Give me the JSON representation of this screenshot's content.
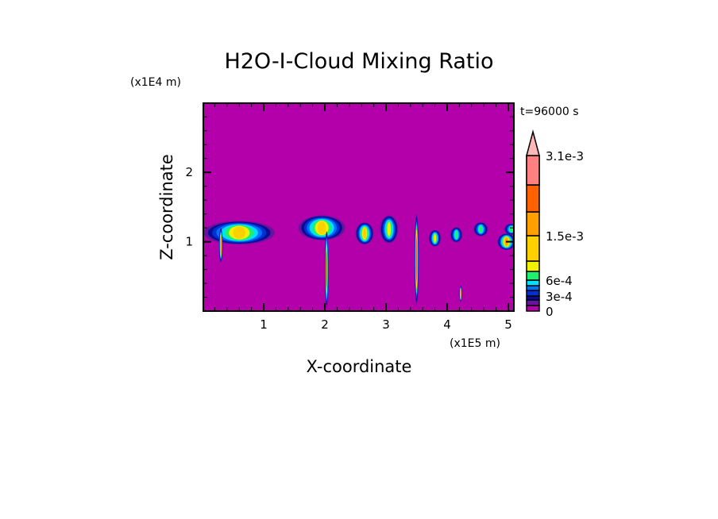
{
  "chart_data": {
    "type": "heatmap",
    "title": "H2O-I-Cloud Mixing Ratio",
    "xlabel": "X-coordinate",
    "ylabel": "Z-coordinate",
    "x_unit": "(x1E5 m)",
    "y_unit": "(x1E4 m)",
    "time_label": "t=96000 s",
    "xlim": [
      0,
      5.13
    ],
    "ylim": [
      0,
      3.0
    ],
    "x_ticks": [
      1,
      2,
      3,
      4,
      5
    ],
    "x_tick_labels": [
      "1",
      "2",
      "3",
      "4",
      "5"
    ],
    "y_ticks": [
      1,
      2
    ],
    "y_tick_labels": [
      "1",
      "2"
    ],
    "minor_step": 0.2,
    "background_color": "#b400aa",
    "colorbar": {
      "levels": [
        0,
        0.0001,
        0.0002,
        0.0003,
        0.0004,
        0.0005,
        0.0006,
        0.0007,
        0.001,
        0.0015,
        0.002,
        0.0025,
        0.0031
      ],
      "colors": [
        "#b400aa",
        "#6614a0",
        "#0a0a96",
        "#0030d0",
        "#0070ff",
        "#00e0ff",
        "#20f070",
        "#f0f000",
        "#ffd000",
        "#ffa000",
        "#ff6000",
        "#ff1414",
        "#ff8080"
      ],
      "extend_color": "#ffb8b8",
      "labels": [
        {
          "value": 0,
          "text": "0"
        },
        {
          "value": 0.0003,
          "text": "3e-4"
        },
        {
          "value": 0.0006,
          "text": "6e-4"
        },
        {
          "value": 0.0015,
          "text": "1.5e-3"
        },
        {
          "value": 0.0031,
          "text": "3.1e-3"
        }
      ]
    },
    "features": [
      {
        "name": "anvil-1",
        "x": 0.6,
        "z": 1.13,
        "rx": 0.58,
        "rz": 0.17,
        "max_level": 8
      },
      {
        "name": "column-1",
        "x": 0.3,
        "z": 0.95,
        "rx": 0.03,
        "rz": 0.25,
        "max_level": 9
      },
      {
        "name": "anvil-2",
        "x": 1.95,
        "z": 1.2,
        "rx": 0.38,
        "rz": 0.18,
        "max_level": 8
      },
      {
        "name": "column-2",
        "x": 2.03,
        "z": 0.6,
        "rx": 0.03,
        "rz": 0.55,
        "max_level": 10
      },
      {
        "name": "cloud-3",
        "x": 2.65,
        "z": 1.12,
        "rx": 0.15,
        "rz": 0.16,
        "max_level": 8
      },
      {
        "name": "cloud-4",
        "x": 3.05,
        "z": 1.18,
        "rx": 0.15,
        "rz": 0.2,
        "max_level": 7
      },
      {
        "name": "column-3",
        "x": 3.5,
        "z": 0.75,
        "rx": 0.035,
        "rz": 0.65,
        "max_level": 10
      },
      {
        "name": "cloud-5",
        "x": 3.8,
        "z": 1.05,
        "rx": 0.1,
        "rz": 0.12,
        "max_level": 7
      },
      {
        "name": "cloud-6",
        "x": 4.15,
        "z": 1.1,
        "rx": 0.1,
        "rz": 0.11,
        "max_level": 6
      },
      {
        "name": "cloud-7",
        "x": 4.55,
        "z": 1.18,
        "rx": 0.12,
        "rz": 0.1,
        "max_level": 6
      },
      {
        "name": "cloud-8",
        "x": 4.97,
        "z": 1.0,
        "rx": 0.15,
        "rz": 0.12,
        "max_level": 9
      },
      {
        "name": "cloud-9",
        "x": 5.05,
        "z": 1.18,
        "rx": 0.12,
        "rz": 0.08,
        "max_level": 6
      },
      {
        "name": "column-4",
        "x": 4.22,
        "z": 0.25,
        "rx": 0.02,
        "rz": 0.12,
        "max_level": 9
      }
    ]
  }
}
